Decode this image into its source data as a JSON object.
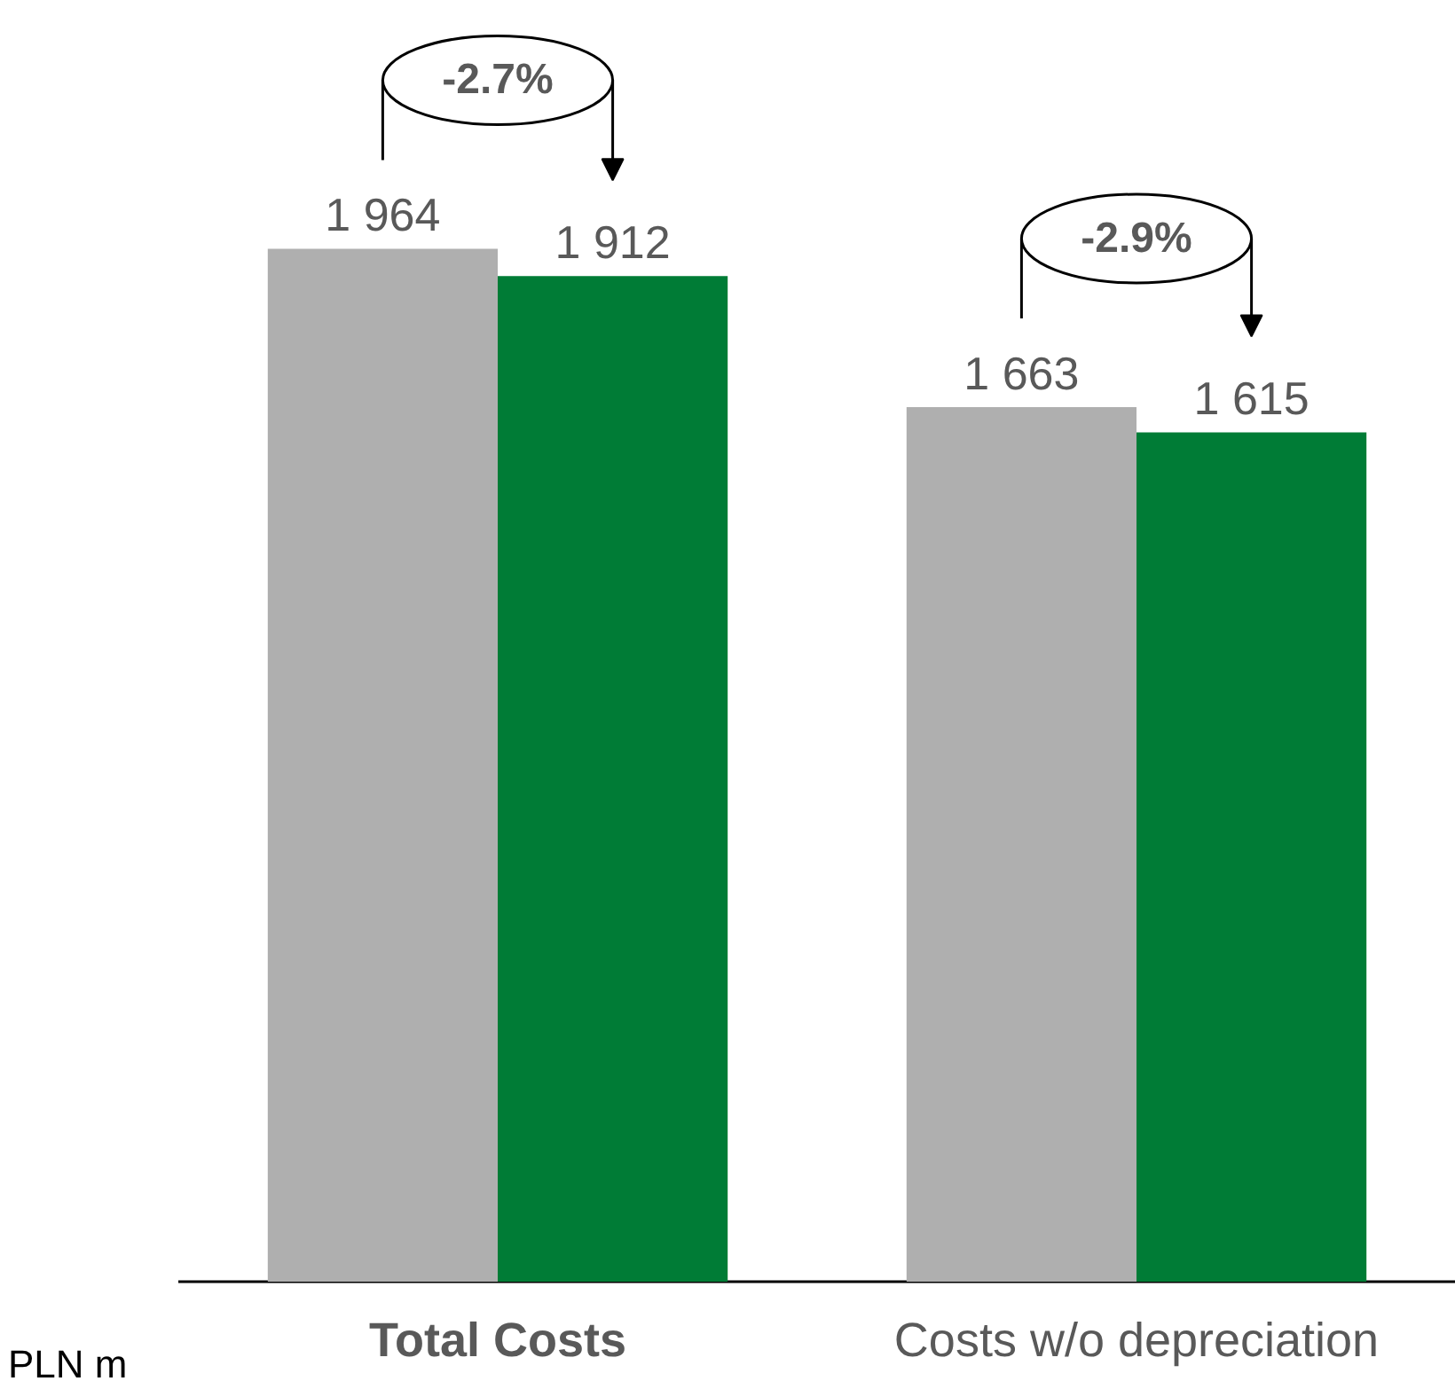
{
  "chart_data": {
    "type": "bar",
    "categories": [
      "Total Costs",
      "Costs w/o depreciation"
    ],
    "series": [
      {
        "color": "#afafaf",
        "values": [
          1964,
          1663
        ],
        "value_labels": [
          "1 964",
          "1 663"
        ]
      },
      {
        "color": "#007c36",
        "values": [
          1912,
          1615
        ],
        "value_labels": [
          "1 912",
          "1 615"
        ]
      }
    ],
    "annotations": [
      "-2.7%",
      "-2.9%",
      "PLN m"
    ],
    "grid": false
  }
}
